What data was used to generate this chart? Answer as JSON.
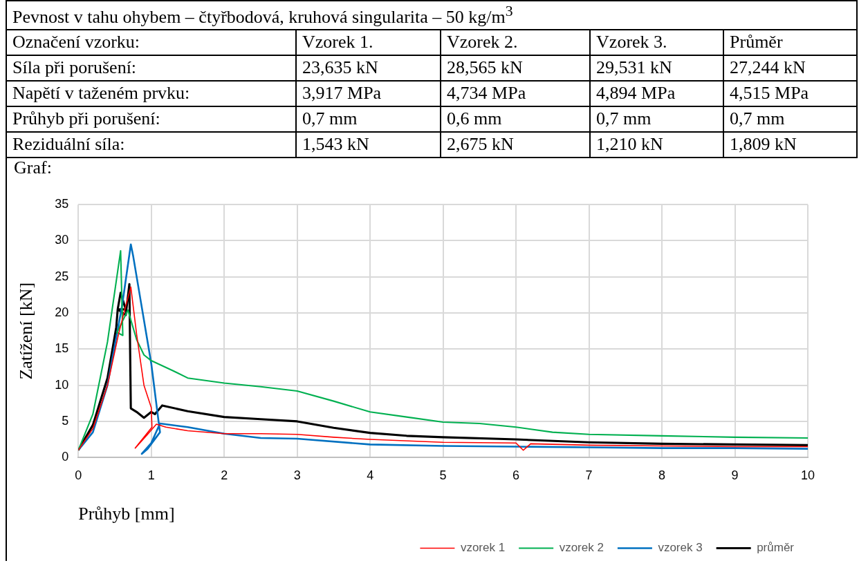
{
  "chart_data": [
    {
      "type": "other",
      "title": "Pevnost v tahu ohybem – čtyřbodová, kruhová singularita – 50 kg/m$^{3}$",
      "annotations": [
        "Označení vzorku:",
        "Vzorek 1.",
        "Vzorek 2.",
        "Vzorek 3.",
        "Průměr",
        "Síla při porušení:",
        "23,635 kN",
        "28,565 kN",
        "29,531 kN",
        "27,244 kN",
        "Napětí v taženém prvku:",
        "3,917 MPa",
        "4,734 MPa",
        "4,894 MPa",
        "4,515 MPa",
        "Průhyb při porušení:",
        "0,7 mm",
        "0,6 mm",
        "0,7 mm",
        "0,7 mm",
        "Reziduální síla:",
        "1,543 kN",
        "2,675 kN",
        "1,210 kN",
        "1,809 kN"
      ]
    },
    {
      "type": "line",
      "title": "Graf:",
      "xlabel": "Průhyb [mm]",
      "ylabel": "Zatížení [kN]",
      "xlim": [
        0,
        10
      ],
      "xticks": [
        0,
        1,
        2,
        3,
        4,
        5,
        6,
        7,
        8,
        9,
        10
      ],
      "ylim": [
        0,
        35
      ],
      "yticks": [
        0,
        5,
        10,
        15,
        20,
        25,
        30,
        35
      ],
      "grid": true,
      "legend": "bottom right",
      "marker": "none",
      "line_style": "solid",
      "series": [
        {
          "name": "vzorek 1",
          "color": "#ff0000",
          "x": [
            0,
            0.2,
            0.4,
            0.55,
            0.65,
            0.72,
            0.8,
            0.9,
            1.0,
            1.01,
            0.78,
            0.95,
            1.07,
            1.2,
            1.5,
            2,
            2.5,
            3,
            3.5,
            4,
            5,
            6,
            6.1,
            6.2,
            7,
            8,
            9,
            10
          ],
          "values": [
            1,
            4,
            10,
            17,
            21,
            23.6,
            17,
            10,
            6.9,
            4.2,
            1.3,
            3.2,
            4.6,
            4.2,
            3.7,
            3.3,
            3.3,
            3.2,
            2.8,
            2.5,
            2.1,
            2.0,
            1.0,
            1.9,
            1.7,
            1.6,
            1.5,
            1.5
          ]
        },
        {
          "name": "vzorek 2",
          "color": "#00b050",
          "x": [
            0,
            0.2,
            0.4,
            0.58,
            0.61,
            0.53,
            0.68,
            0.8,
            0.9,
            1.0,
            1.3,
            1.5,
            2,
            2.5,
            3,
            3.5,
            4,
            4.5,
            5,
            5.5,
            6,
            6.5,
            7,
            8,
            9,
            10
          ],
          "values": [
            1,
            6,
            16,
            28.6,
            16.9,
            17.3,
            20.4,
            16.3,
            14.2,
            13.4,
            12,
            11,
            10.3,
            9.8,
            9.2,
            7.8,
            6.3,
            5.6,
            4.9,
            4.7,
            4.2,
            3.5,
            3.2,
            3,
            2.8,
            2.7
          ]
        },
        {
          "name": "vzorek 3",
          "color": "#0070c0",
          "x": [
            0,
            0.2,
            0.4,
            0.6,
            0.72,
            0.75,
            0.85,
            1.0,
            1.1,
            1.12,
            0.95,
            0.87,
            1.0,
            1.12,
            1.5,
            2,
            2.5,
            3,
            4,
            5,
            6,
            7,
            8,
            9,
            10
          ],
          "values": [
            1,
            3.5,
            10,
            21,
            29.5,
            28,
            22,
            13,
            5,
            3.5,
            1.2,
            0.5,
            2,
            4.7,
            4.2,
            3.3,
            2.7,
            2.6,
            1.8,
            1.6,
            1.5,
            1.4,
            1.3,
            1.3,
            1.2
          ]
        },
        {
          "name": "průměr",
          "color": "#000000",
          "x": [
            0,
            0.2,
            0.4,
            0.52,
            0.54,
            0.58,
            0.65,
            0.54,
            0.65,
            0.7,
            0.71,
            0.72,
            0.8,
            0.9,
            1.0,
            1.05,
            1.15,
            1.5,
            2,
            2.5,
            3,
            3.5,
            4,
            4.5,
            5,
            6,
            7,
            8,
            9,
            10
          ],
          "values": [
            1,
            4.5,
            11,
            18,
            20.5,
            22.8,
            20.5,
            20.5,
            19.7,
            24,
            15,
            6.8,
            6.3,
            5.5,
            6.3,
            6.0,
            7.2,
            6.4,
            5.6,
            5.3,
            5.0,
            4.1,
            3.4,
            3.0,
            2.8,
            2.5,
            2.1,
            1.9,
            1.8,
            1.7
          ]
        }
      ]
    }
  ]
}
